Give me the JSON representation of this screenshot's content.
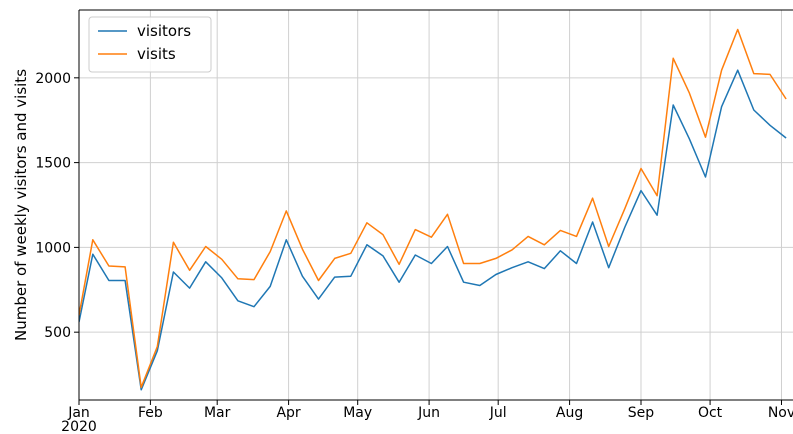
{
  "chart_data": {
    "type": "line",
    "ylabel": "Number of weekly visitors and visits",
    "xlabel": "",
    "x_ticks": [
      {
        "label": "Jan",
        "date": "2020-01-01"
      },
      {
        "label": "Feb",
        "date": "2020-02-01"
      },
      {
        "label": "Mar",
        "date": "2020-03-01"
      },
      {
        "label": "Apr",
        "date": "2020-04-01"
      },
      {
        "label": "May",
        "date": "2020-05-01"
      },
      {
        "label": "Jun",
        "date": "2020-06-01"
      },
      {
        "label": "Jul",
        "date": "2020-07-01"
      },
      {
        "label": "Aug",
        "date": "2020-08-01"
      },
      {
        "label": "Sep",
        "date": "2020-09-01"
      },
      {
        "label": "Oct",
        "date": "2020-10-01"
      },
      {
        "label": "Nov",
        "date": "2020-11-01"
      }
    ],
    "x_year_label": "2020",
    "xlim": [
      "2020-01-01",
      "2020-11-06"
    ],
    "ylim": [
      100,
      2400
    ],
    "y_ticks": [
      500,
      1000,
      1500,
      2000
    ],
    "grid": true,
    "legend": "top-left",
    "series": [
      {
        "name": "visitors",
        "color": "#1f77b4",
        "points": [
          [
            "2020-01-01",
            560
          ],
          [
            "2020-01-07",
            960
          ],
          [
            "2020-01-14",
            805
          ],
          [
            "2020-01-21",
            805
          ],
          [
            "2020-01-28",
            160
          ],
          [
            "2020-02-04",
            390
          ],
          [
            "2020-02-11",
            855
          ],
          [
            "2020-02-18",
            760
          ],
          [
            "2020-02-25",
            915
          ],
          [
            "2020-03-03",
            820
          ],
          [
            "2020-03-10",
            685
          ],
          [
            "2020-03-17",
            650
          ],
          [
            "2020-03-24",
            770
          ],
          [
            "2020-03-31",
            1045
          ],
          [
            "2020-04-07",
            830
          ],
          [
            "2020-04-14",
            695
          ],
          [
            "2020-04-21",
            825
          ],
          [
            "2020-04-28",
            830
          ],
          [
            "2020-05-05",
            1015
          ],
          [
            "2020-05-12",
            950
          ],
          [
            "2020-05-19",
            795
          ],
          [
            "2020-05-26",
            955
          ],
          [
            "2020-06-02",
            905
          ],
          [
            "2020-06-09",
            1005
          ],
          [
            "2020-06-16",
            795
          ],
          [
            "2020-06-23",
            775
          ],
          [
            "2020-06-30",
            840
          ],
          [
            "2020-07-07",
            880
          ],
          [
            "2020-07-14",
            915
          ],
          [
            "2020-07-21",
            875
          ],
          [
            "2020-07-28",
            980
          ],
          [
            "2020-08-04",
            905
          ],
          [
            "2020-08-11",
            1150
          ],
          [
            "2020-08-18",
            880
          ],
          [
            "2020-08-25",
            1120
          ],
          [
            "2020-09-01",
            1335
          ],
          [
            "2020-09-08",
            1190
          ],
          [
            "2020-09-15",
            1840
          ],
          [
            "2020-09-22",
            1640
          ],
          [
            "2020-09-29",
            1415
          ],
          [
            "2020-10-06",
            1830
          ],
          [
            "2020-10-13",
            2045
          ],
          [
            "2020-10-20",
            1810
          ],
          [
            "2020-10-27",
            1720
          ],
          [
            "2020-11-03",
            1645
          ]
        ]
      },
      {
        "name": "visits",
        "color": "#ff7f0e",
        "points": [
          [
            "2020-01-01",
            600
          ],
          [
            "2020-01-07",
            1045
          ],
          [
            "2020-01-14",
            890
          ],
          [
            "2020-01-21",
            885
          ],
          [
            "2020-01-28",
            175
          ],
          [
            "2020-02-04",
            415
          ],
          [
            "2020-02-11",
            1030
          ],
          [
            "2020-02-18",
            865
          ],
          [
            "2020-02-25",
            1005
          ],
          [
            "2020-03-03",
            930
          ],
          [
            "2020-03-10",
            815
          ],
          [
            "2020-03-17",
            810
          ],
          [
            "2020-03-24",
            975
          ],
          [
            "2020-03-31",
            1215
          ],
          [
            "2020-04-07",
            990
          ],
          [
            "2020-04-14",
            805
          ],
          [
            "2020-04-21",
            935
          ],
          [
            "2020-04-28",
            965
          ],
          [
            "2020-05-05",
            1145
          ],
          [
            "2020-05-12",
            1075
          ],
          [
            "2020-05-19",
            900
          ],
          [
            "2020-05-26",
            1105
          ],
          [
            "2020-06-02",
            1060
          ],
          [
            "2020-06-09",
            1195
          ],
          [
            "2020-06-16",
            905
          ],
          [
            "2020-06-23",
            905
          ],
          [
            "2020-06-30",
            935
          ],
          [
            "2020-07-07",
            985
          ],
          [
            "2020-07-14",
            1065
          ],
          [
            "2020-07-21",
            1015
          ],
          [
            "2020-07-28",
            1100
          ],
          [
            "2020-08-04",
            1065
          ],
          [
            "2020-08-11",
            1290
          ],
          [
            "2020-08-18",
            1005
          ],
          [
            "2020-08-25",
            1230
          ],
          [
            "2020-09-01",
            1465
          ],
          [
            "2020-09-08",
            1305
          ],
          [
            "2020-09-15",
            2115
          ],
          [
            "2020-09-22",
            1910
          ],
          [
            "2020-09-29",
            1650
          ],
          [
            "2020-10-06",
            2045
          ],
          [
            "2020-10-13",
            2285
          ],
          [
            "2020-10-20",
            2025
          ],
          [
            "2020-10-27",
            2020
          ],
          [
            "2020-11-03",
            1875
          ]
        ]
      }
    ]
  }
}
